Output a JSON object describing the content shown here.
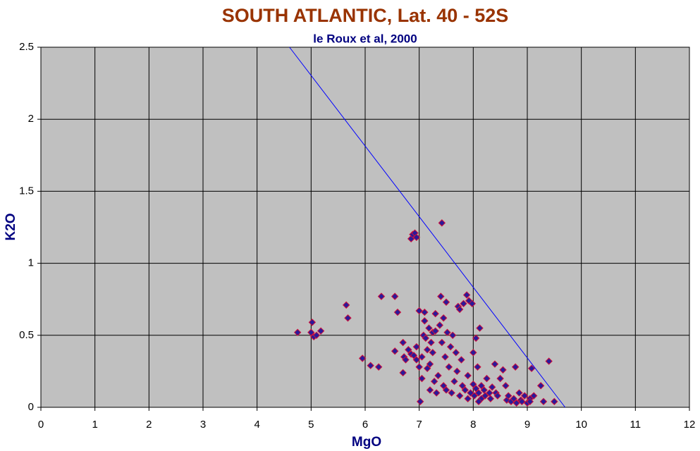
{
  "chart_data": {
    "type": "scatter",
    "title": "SOUTH ATLANTIC, Lat. 40 - 52S",
    "subtitle": "le Roux et al, 2000",
    "xlabel": "MgO",
    "ylabel": "K2O",
    "xlim": [
      0,
      12
    ],
    "ylim": [
      0,
      2.5
    ],
    "xticks": [
      0,
      1,
      2,
      3,
      4,
      5,
      6,
      7,
      8,
      9,
      10,
      11,
      12
    ],
    "yticks": [
      0,
      0.5,
      1,
      1.5,
      2,
      2.5
    ],
    "grid": true,
    "background": "#c0c0c0",
    "series": [
      {
        "mode": "markers",
        "color": "#2a1a9a",
        "edgecolor": "#d0103a",
        "x": [
          4.75,
          5.0,
          5.02,
          5.05,
          5.1,
          5.18,
          5.65,
          5.68,
          5.95,
          6.1,
          6.25,
          6.3,
          6.55,
          6.6,
          6.55,
          6.7,
          6.7,
          6.72,
          6.75,
          6.8,
          6.85,
          6.85,
          6.88,
          6.92,
          6.95,
          6.9,
          6.95,
          6.95,
          7.0,
          7.0,
          7.02,
          7.05,
          7.05,
          7.08,
          7.1,
          7.1,
          7.12,
          7.15,
          7.15,
          7.18,
          7.2,
          7.2,
          7.22,
          7.25,
          7.25,
          7.28,
          7.3,
          7.3,
          7.32,
          7.35,
          7.38,
          7.4,
          7.42,
          7.42,
          7.45,
          7.45,
          7.48,
          7.5,
          7.5,
          7.52,
          7.55,
          7.58,
          7.6,
          7.62,
          7.65,
          7.68,
          7.7,
          7.72,
          7.75,
          7.75,
          7.78,
          7.8,
          7.82,
          7.85,
          7.88,
          7.9,
          7.92,
          7.95,
          7.98,
          8.0,
          8.0,
          8.02,
          8.05,
          8.05,
          8.08,
          8.1,
          8.12,
          8.15,
          8.15,
          8.2,
          8.22,
          8.25,
          8.3,
          8.32,
          8.35,
          8.4,
          8.42,
          8.45,
          8.5,
          8.55,
          8.6,
          8.62,
          8.65,
          8.7,
          8.75,
          8.78,
          8.8,
          8.85,
          8.88,
          8.9,
          9.0,
          9.05,
          9.08,
          9.12,
          9.25,
          9.3,
          9.4,
          9.5,
          9.05,
          8.95,
          7.9,
          8.1
        ],
        "values": [
          0.52,
          0.52,
          0.59,
          0.49,
          0.5,
          0.53,
          0.71,
          0.62,
          0.34,
          0.29,
          0.28,
          0.77,
          0.77,
          0.66,
          0.39,
          0.24,
          0.45,
          0.35,
          0.33,
          0.4,
          0.37,
          1.17,
          1.2,
          1.21,
          1.18,
          0.36,
          0.33,
          0.42,
          0.28,
          0.67,
          0.04,
          0.2,
          0.35,
          0.5,
          0.6,
          0.66,
          0.48,
          0.27,
          0.4,
          0.55,
          0.12,
          0.3,
          0.45,
          0.52,
          0.38,
          0.18,
          0.65,
          0.53,
          0.1,
          0.22,
          0.57,
          0.77,
          1.28,
          0.45,
          0.15,
          0.62,
          0.35,
          0.73,
          0.12,
          0.52,
          0.28,
          0.42,
          0.1,
          0.5,
          0.18,
          0.38,
          0.25,
          0.7,
          0.08,
          0.68,
          0.33,
          0.15,
          0.72,
          0.12,
          0.78,
          0.22,
          0.74,
          0.1,
          0.72,
          0.16,
          0.38,
          0.08,
          0.48,
          0.13,
          0.28,
          0.1,
          0.55,
          0.06,
          0.15,
          0.12,
          0.08,
          0.2,
          0.1,
          0.06,
          0.14,
          0.3,
          0.1,
          0.08,
          0.2,
          0.26,
          0.15,
          0.05,
          0.08,
          0.04,
          0.06,
          0.28,
          0.03,
          0.1,
          0.05,
          0.04,
          0.03,
          0.06,
          0.27,
          0.08,
          0.15,
          0.04,
          0.32,
          0.04,
          0.04,
          0.08,
          0.06,
          0.04
        ]
      },
      {
        "mode": "line",
        "color": "#0000ff",
        "x": [
          4.6,
          9.7
        ],
        "values": [
          2.5,
          0
        ]
      }
    ]
  }
}
